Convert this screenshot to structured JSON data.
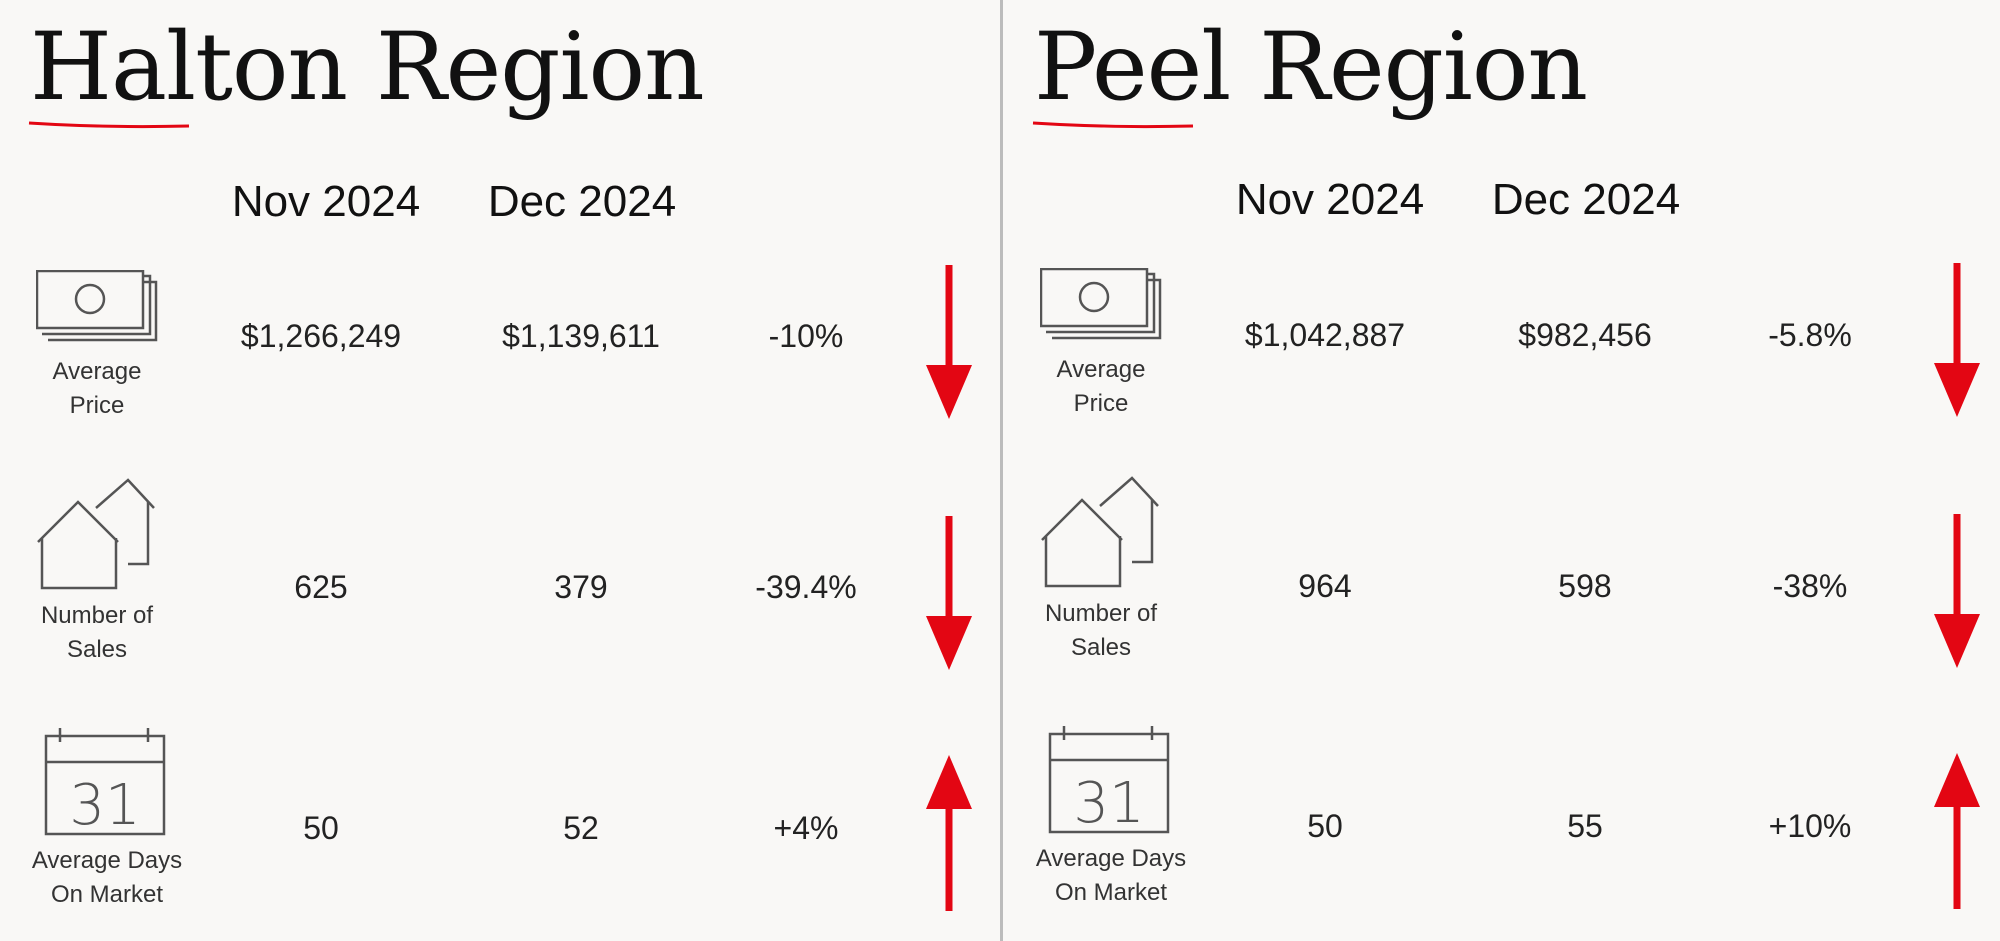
{
  "columns": {
    "prev": "Nov 2024",
    "curr": "Dec 2024"
  },
  "colors": {
    "accent": "#e30613",
    "icon_stroke": "#555555",
    "text": "#111111"
  },
  "regions": [
    {
      "title": "Halton Region",
      "rows": [
        {
          "icon": "money-icon",
          "label_line1": "Average",
          "label_line2": "Price",
          "prev": "$1,266,249",
          "curr": "$1,139,611",
          "change": "-10%",
          "direction": "down"
        },
        {
          "icon": "house-icon",
          "label_line1": "Number of",
          "label_line2": "Sales",
          "prev": "625",
          "curr": "379",
          "change": "-39.4%",
          "direction": "down"
        },
        {
          "icon": "calendar-icon",
          "calendar_day": "31",
          "label_line1": "Average Days",
          "label_line2": "On Market",
          "prev": "50",
          "curr": "52",
          "change": "+4%",
          "direction": "up"
        }
      ]
    },
    {
      "title": "Peel Region",
      "rows": [
        {
          "icon": "money-icon",
          "label_line1": "Average",
          "label_line2": "Price",
          "prev": "$1,042,887",
          "curr": "$982,456",
          "change": "-5.8%",
          "direction": "down"
        },
        {
          "icon": "house-icon",
          "label_line1": "Number of",
          "label_line2": "Sales",
          "prev": "964",
          "curr": "598",
          "change": "-38%",
          "direction": "down"
        },
        {
          "icon": "calendar-icon",
          "calendar_day": "31",
          "label_line1": "Average Days",
          "label_line2": "On Market",
          "prev": "50",
          "curr": "55",
          "change": "+10%",
          "direction": "up"
        }
      ]
    }
  ]
}
